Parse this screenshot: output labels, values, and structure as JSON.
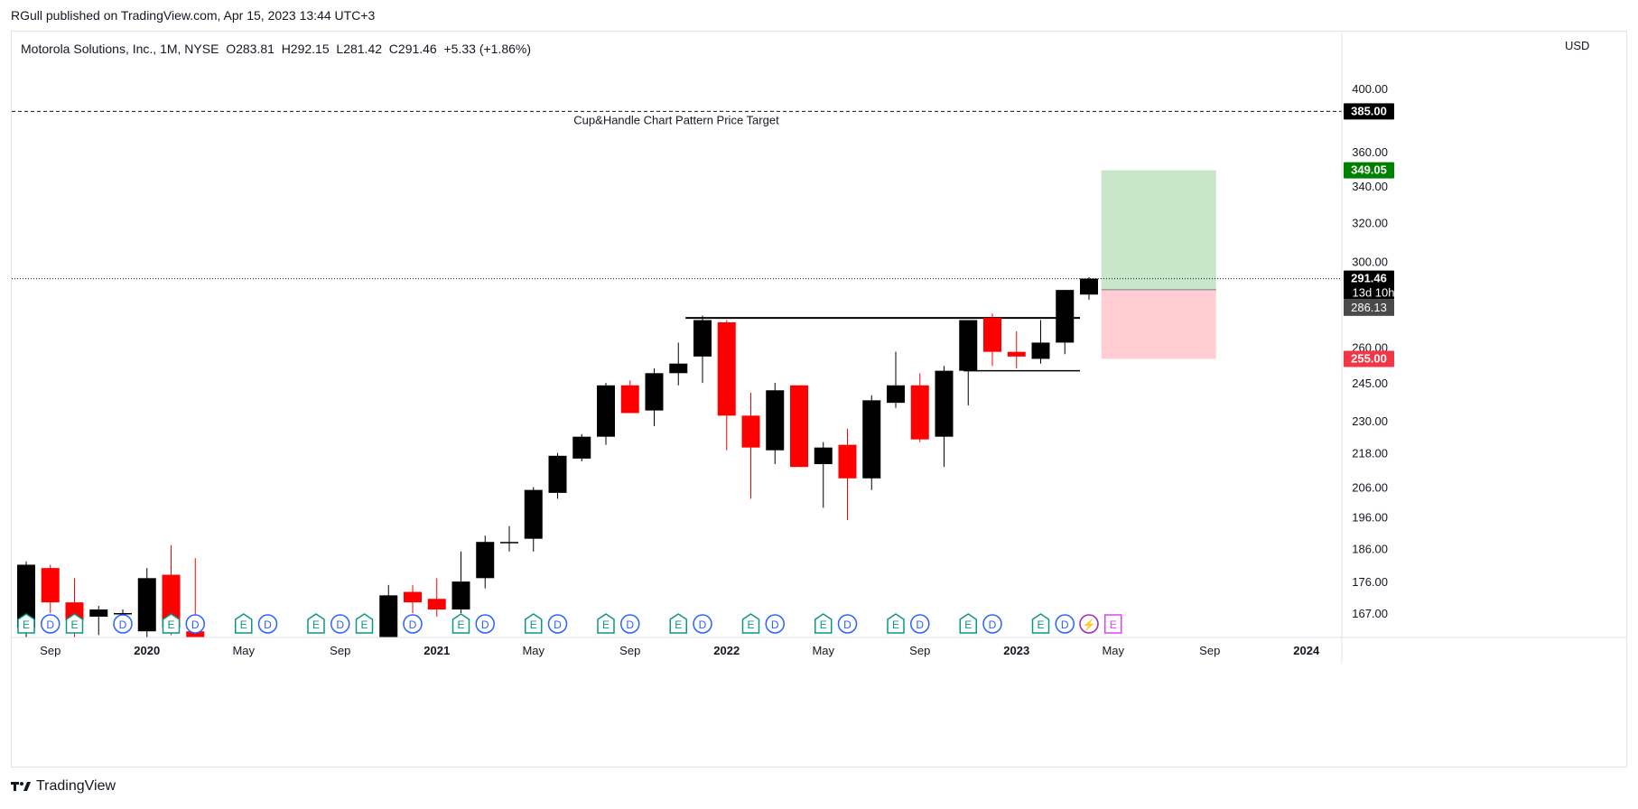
{
  "publisher": "RGull published on TradingView.com, Apr 15, 2023 13:44 UTC+3",
  "legend": "Motorola Solutions, Inc., 1M, NYSE  O283.81  H292.15  L281.42  C291.46  +5.33 (+1.86%)",
  "currency": "USD",
  "footer_brand": "TradingView",
  "colors": {
    "up": "#000000",
    "down": "#ff0000",
    "profit_zone": "#c8e6c9",
    "loss_zone": "#ffcdd2",
    "target_badge": "#008000",
    "stop_badge": "#f23645",
    "dark_badge": "#000000",
    "grey_badge": "#4a4a4a",
    "earnings": "#089981",
    "dividend": "#2962ff",
    "split": "#9c27b0",
    "future_earnings": "#e040fb"
  },
  "chart_data": {
    "type": "candlestick",
    "interval": "1M",
    "y_scale": "log",
    "y_ticks": [
      "400.00",
      "360.00",
      "340.00",
      "320.00",
      "300.00",
      "260.00",
      "245.00",
      "230.00",
      "218.00",
      "206.00",
      "196.00",
      "186.00",
      "176.00",
      "167.00"
    ],
    "x_labels": [
      "Sep",
      "2020",
      "May",
      "Sep",
      "2021",
      "May",
      "Sep",
      "2022",
      "May",
      "Sep",
      "2023",
      "May",
      "Sep",
      "2024"
    ],
    "candles": [
      {
        "m": "2019-08",
        "o": 163,
        "h": 182,
        "l": 159,
        "c": 181
      },
      {
        "m": "2019-09",
        "o": 180,
        "h": 181,
        "l": 167,
        "c": 170
      },
      {
        "m": "2019-10",
        "o": 170,
        "h": 177,
        "l": 160,
        "c": 165
      },
      {
        "m": "2019-11",
        "o": 166,
        "h": 169,
        "l": 161,
        "c": 168
      },
      {
        "m": "2019-12",
        "o": 167,
        "h": 168,
        "l": 162,
        "c": 167
      },
      {
        "m": "2020-01",
        "o": 162,
        "h": 180,
        "l": 159,
        "c": 177
      },
      {
        "m": "2020-02",
        "o": 178,
        "h": 187,
        "l": 161,
        "c": 163
      },
      {
        "m": "2020-03",
        "o": 162,
        "h": 183,
        "l": 130,
        "c": 133
      },
      {
        "m": "2020-11",
        "o": 156,
        "h": 175,
        "l": 154,
        "c": 172
      },
      {
        "m": "2020-12",
        "o": 173,
        "h": 175,
        "l": 167,
        "c": 170
      },
      {
        "m": "2021-01",
        "o": 171,
        "h": 177,
        "l": 166,
        "c": 168
      },
      {
        "m": "2021-02",
        "o": 168,
        "h": 185,
        "l": 167,
        "c": 176
      },
      {
        "m": "2021-03",
        "o": 177,
        "h": 190,
        "l": 174,
        "c": 188
      },
      {
        "m": "2021-04",
        "o": 188,
        "h": 193,
        "l": 185,
        "c": 188
      },
      {
        "m": "2021-05",
        "o": 189,
        "h": 206,
        "l": 185,
        "c": 205
      },
      {
        "m": "2021-06",
        "o": 204,
        "h": 218,
        "l": 202,
        "c": 217
      },
      {
        "m": "2021-07",
        "o": 216,
        "h": 225,
        "l": 215,
        "c": 224
      },
      {
        "m": "2021-08",
        "o": 224,
        "h": 245,
        "l": 221,
        "c": 244
      },
      {
        "m": "2021-09",
        "o": 244,
        "h": 246,
        "l": 233,
        "c": 233
      },
      {
        "m": "2021-10",
        "o": 234,
        "h": 251,
        "l": 228,
        "c": 249
      },
      {
        "m": "2021-11",
        "o": 249,
        "h": 262,
        "l": 244,
        "c": 253
      },
      {
        "m": "2021-12",
        "o": 256,
        "h": 274,
        "l": 245,
        "c": 272
      },
      {
        "m": "2022-01",
        "o": 271,
        "h": 272,
        "l": 219,
        "c": 232
      },
      {
        "m": "2022-02",
        "o": 232,
        "h": 241,
        "l": 202,
        "c": 220
      },
      {
        "m": "2022-03",
        "o": 219,
        "h": 245,
        "l": 214,
        "c": 242
      },
      {
        "m": "2022-04",
        "o": 244,
        "h": 244,
        "l": 213,
        "c": 213
      },
      {
        "m": "2022-05",
        "o": 214,
        "h": 222,
        "l": 199,
        "c": 220
      },
      {
        "m": "2022-06",
        "o": 221,
        "h": 227,
        "l": 195,
        "c": 209
      },
      {
        "m": "2022-07",
        "o": 209,
        "h": 240,
        "l": 205,
        "c": 238
      },
      {
        "m": "2022-08",
        "o": 237,
        "h": 258,
        "l": 235,
        "c": 244
      },
      {
        "m": "2022-09",
        "o": 244,
        "h": 249,
        "l": 222,
        "c": 223
      },
      {
        "m": "2022-10",
        "o": 224,
        "h": 252,
        "l": 213,
        "c": 250
      },
      {
        "m": "2022-11",
        "o": 250,
        "h": 272,
        "l": 236,
        "c": 272
      },
      {
        "m": "2022-12",
        "o": 273,
        "h": 275,
        "l": 252,
        "c": 258
      },
      {
        "m": "2023-01",
        "o": 258,
        "h": 267,
        "l": 251,
        "c": 256
      },
      {
        "m": "2023-02",
        "o": 255,
        "h": 272,
        "l": 253,
        "c": 262
      },
      {
        "m": "2023-03",
        "o": 262,
        "h": 286,
        "l": 257,
        "c": 286
      },
      {
        "m": "2023-04",
        "o": 283.81,
        "h": 292.15,
        "l": 281.42,
        "c": 291.46
      }
    ],
    "resistance_line": 273,
    "handle_support_line": 250,
    "target_line": {
      "value": 385,
      "label": "Cup&Handle Chart Pattern Price Target"
    },
    "position": {
      "entry": 286.13,
      "target": 349.05,
      "stop": 255.0
    },
    "price_labels": {
      "target_line": "385.00",
      "profit_target": "349.05",
      "last_price": "291.46",
      "countdown": "13d 10h",
      "entry": "286.13",
      "stop": "255.00"
    },
    "events": [
      {
        "m": "2019-08",
        "t": "E"
      },
      {
        "m": "2019-09",
        "t": "D"
      },
      {
        "m": "2019-10",
        "t": "E"
      },
      {
        "m": "2019-12",
        "t": "D"
      },
      {
        "m": "2020-02",
        "t": "E"
      },
      {
        "m": "2020-03",
        "t": "D"
      },
      {
        "m": "2020-05",
        "t": "E"
      },
      {
        "m": "2020-06",
        "t": "D"
      },
      {
        "m": "2020-08",
        "t": "E"
      },
      {
        "m": "2020-09",
        "t": "D"
      },
      {
        "m": "2020-10",
        "t": "E"
      },
      {
        "m": "2020-12",
        "t": "D"
      },
      {
        "m": "2021-02",
        "t": "E"
      },
      {
        "m": "2021-03",
        "t": "D"
      },
      {
        "m": "2021-05",
        "t": "E"
      },
      {
        "m": "2021-06",
        "t": "D"
      },
      {
        "m": "2021-08",
        "t": "E"
      },
      {
        "m": "2021-09",
        "t": "D"
      },
      {
        "m": "2021-11",
        "t": "E"
      },
      {
        "m": "2021-12",
        "t": "D"
      },
      {
        "m": "2022-02",
        "t": "E"
      },
      {
        "m": "2022-03",
        "t": "D"
      },
      {
        "m": "2022-05",
        "t": "E"
      },
      {
        "m": "2022-06",
        "t": "D"
      },
      {
        "m": "2022-08",
        "t": "E"
      },
      {
        "m": "2022-09",
        "t": "D"
      },
      {
        "m": "2022-11",
        "t": "E"
      },
      {
        "m": "2022-12",
        "t": "D"
      },
      {
        "m": "2023-02",
        "t": "E"
      },
      {
        "m": "2023-03",
        "t": "D"
      },
      {
        "m": "2023-04",
        "t": "S"
      },
      {
        "m": "2023-05",
        "t": "F"
      }
    ]
  }
}
